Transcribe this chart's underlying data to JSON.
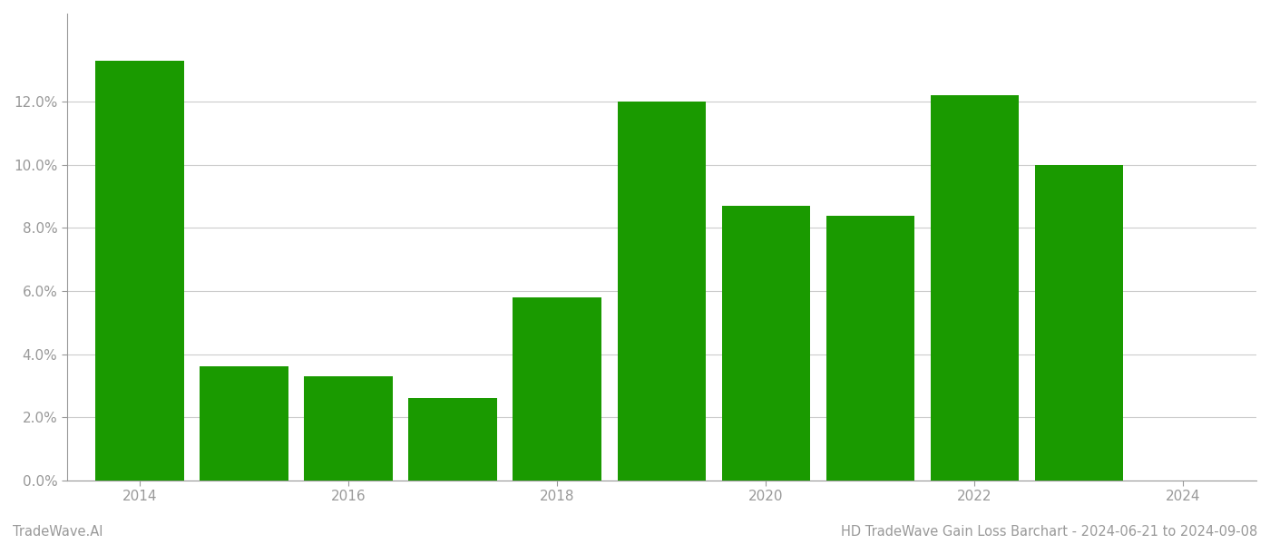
{
  "years": [
    2014,
    2015,
    2016,
    2017,
    2018,
    2019,
    2020,
    2021,
    2022,
    2023
  ],
  "values": [
    0.133,
    0.036,
    0.033,
    0.026,
    0.058,
    0.12,
    0.087,
    0.084,
    0.122,
    0.1
  ],
  "bar_color": "#1a9a00",
  "background_color": "#ffffff",
  "grid_color": "#cccccc",
  "tick_label_color": "#999999",
  "title_text": "HD TradeWave Gain Loss Barchart - 2024-06-21 to 2024-09-08",
  "watermark_text": "TradeWave.AI",
  "ylim": [
    0,
    0.148
  ],
  "ytick_values": [
    0.0,
    0.02,
    0.04,
    0.06,
    0.08,
    0.1,
    0.12
  ],
  "xlim": [
    2013.3,
    2024.7
  ],
  "xtick_values": [
    2014,
    2016,
    2018,
    2020,
    2022,
    2024
  ],
  "title_fontsize": 10.5,
  "watermark_fontsize": 10.5,
  "tick_fontsize": 11,
  "bar_width": 0.85
}
